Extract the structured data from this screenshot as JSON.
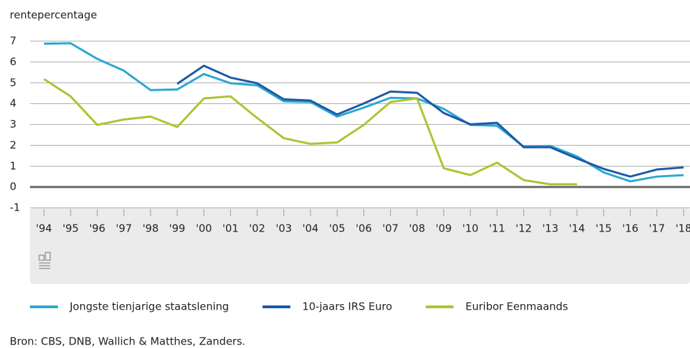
{
  "chart_data": {
    "type": "line",
    "y_label": "rentepercentage",
    "categories": [
      "'94",
      "'95",
      "'96",
      "'97",
      "'98",
      "'99",
      "'00",
      "'01",
      "'02",
      "'03",
      "'04",
      "'05",
      "'06",
      "'07",
      "'08",
      "'09",
      "'10",
      "'11",
      "'12",
      "'13",
      "'14",
      "'15",
      "'16",
      "'17",
      "'18"
    ],
    "series": [
      {
        "name": "Jongste tienjarige staatslening",
        "color": "#2aa7d0",
        "values": [
          6.88,
          6.9,
          6.15,
          5.58,
          4.65,
          4.68,
          5.42,
          4.98,
          4.88,
          4.11,
          4.08,
          3.38,
          3.81,
          4.28,
          4.25,
          3.75,
          2.98,
          2.94,
          1.94,
          1.97,
          1.47,
          0.7,
          0.27,
          0.5,
          0.57
        ]
      },
      {
        "name": "10-jaars IRS Euro",
        "color": "#1a5aa6",
        "values": [
          null,
          null,
          null,
          null,
          null,
          4.95,
          5.82,
          5.25,
          4.98,
          4.21,
          4.15,
          3.48,
          4.01,
          4.58,
          4.52,
          3.55,
          3.01,
          3.08,
          1.91,
          1.91,
          1.37,
          0.87,
          0.5,
          0.84,
          0.94
        ]
      },
      {
        "name": "Euribor Eenmaands",
        "color": "#a9c52f",
        "values": [
          5.18,
          4.35,
          2.98,
          3.24,
          3.38,
          2.88,
          4.25,
          4.35,
          3.31,
          2.34,
          2.07,
          2.14,
          2.98,
          4.08,
          4.25,
          0.9,
          0.57,
          1.17,
          0.33,
          0.13,
          0.13,
          null,
          null,
          null,
          null
        ]
      }
    ],
    "ylim": [
      -1,
      7
    ],
    "yticks": [
      -1,
      0,
      1,
      2,
      3,
      4,
      5,
      6,
      7
    ],
    "grid": true,
    "source": "Bron: CBS, DNB, Wallich & Matthes, Zanders."
  }
}
